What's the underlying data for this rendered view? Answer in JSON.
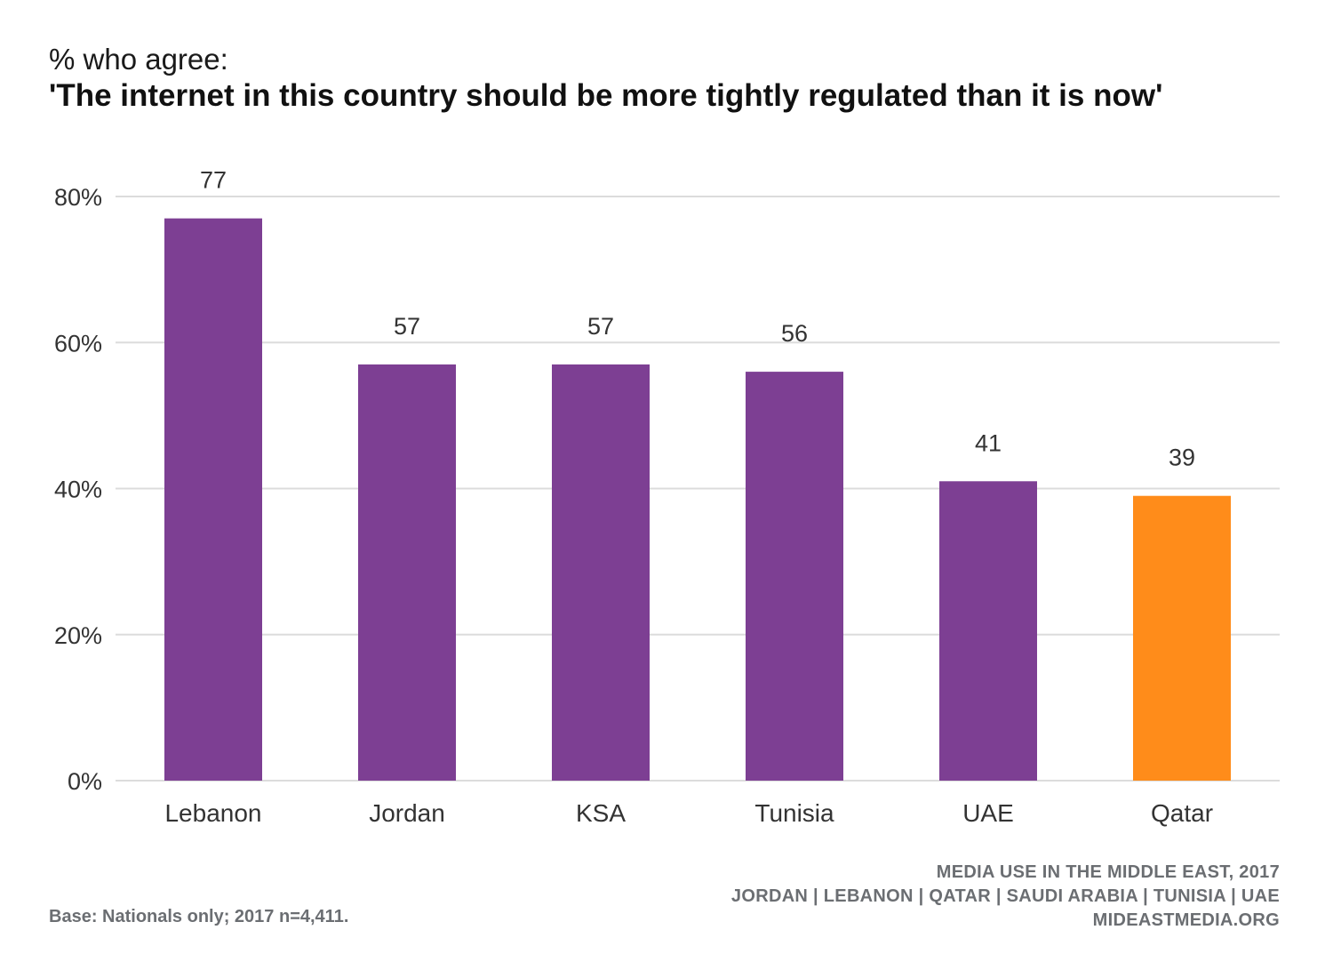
{
  "header": {
    "subtitle": "% who agree:",
    "title": "'The internet in this country should be more tightly regulated than it is now'"
  },
  "chart_data": {
    "type": "bar",
    "categories": [
      "Lebanon",
      "Jordan",
      "KSA",
      "Tunisia",
      "UAE",
      "Qatar"
    ],
    "values": [
      77,
      57,
      57,
      56,
      41,
      39
    ],
    "data_labels": [
      "77",
      "57",
      "57",
      "56",
      "41",
      "39"
    ],
    "ylim": [
      0,
      80
    ],
    "yticks": [
      0,
      20,
      40,
      60,
      80
    ],
    "ytick_labels": [
      "0%",
      "20%",
      "40%",
      "60%",
      "80%"
    ],
    "grid": true,
    "colors": {
      "default": "#7d3f93",
      "highlight": "#ff8c1a",
      "highlight_category": "Qatar",
      "grid": "#dcdcdc",
      "text": "#333333"
    }
  },
  "footer": {
    "source_line1": "MEDIA USE IN THE MIDDLE EAST, 2017",
    "source_line2": "JORDAN | LEBANON | QATAR | SAUDI ARABIA | TUNISIA | UAE",
    "source_line3": "MIDEASTMEDIA.ORG",
    "base_note": "Base: Nationals only; 2017 n=4,411."
  }
}
